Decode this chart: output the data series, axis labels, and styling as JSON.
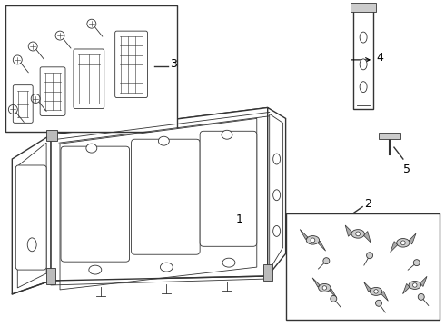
{
  "bg_color": "#ffffff",
  "line_color": "#333333",
  "gray": "#999999",
  "light_gray": "#cccccc",
  "figsize": [
    4.9,
    3.6
  ],
  "dpi": 100
}
